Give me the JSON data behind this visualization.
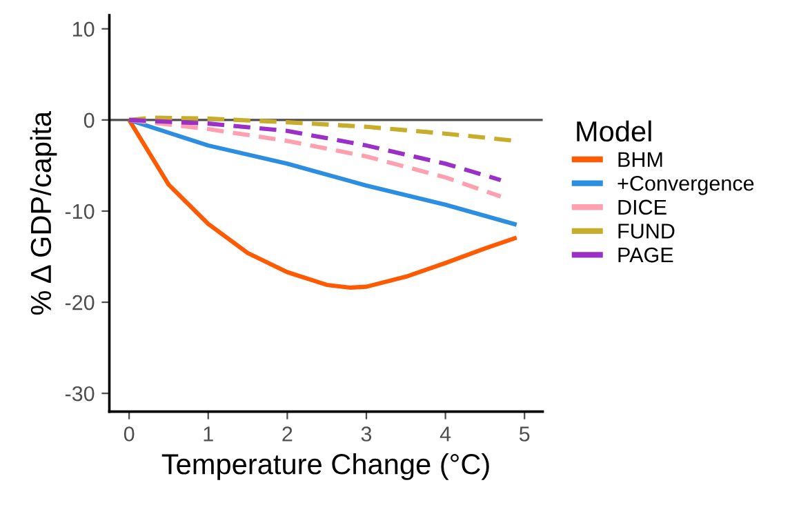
{
  "chart_data": {
    "type": "line",
    "xlabel": "Temperature Change (°C)",
    "ylabel": "% Δ GDP/capita",
    "legend_title": "Model",
    "legend": "right",
    "xlim": [
      -0.25,
      5.23
    ],
    "ylim": [
      -32,
      11.5
    ],
    "xticks": [
      0,
      1,
      2,
      3,
      4,
      5
    ],
    "yticks": [
      -30,
      -20,
      -10,
      0,
      10
    ],
    "grid": false,
    "ref_lines": [
      {
        "axis": "y",
        "value": 0,
        "color": "#4d4d4d"
      }
    ],
    "series": [
      {
        "name": "BHM",
        "color": "#ff5a00",
        "line_style": "solid",
        "x": [
          0,
          0.5,
          1,
          1.5,
          2,
          2.5,
          2.8,
          3,
          3.5,
          4,
          4.5,
          4.9
        ],
        "values": [
          0,
          -7.1,
          -11.4,
          -14.6,
          -16.7,
          -18.1,
          -18.4,
          -18.3,
          -17.2,
          -15.7,
          -14.1,
          -12.9
        ]
      },
      {
        "name": "+Convergence",
        "color": "#2b8ee0",
        "line_style": "solid",
        "x": [
          0,
          1,
          2,
          3,
          4,
          4.9
        ],
        "values": [
          0,
          -2.8,
          -4.8,
          -7.2,
          -9.3,
          -11.5
        ]
      },
      {
        "name": "DICE",
        "color": "#ffa0b0",
        "line_style": "dashed",
        "x": [
          0,
          1,
          2,
          3,
          4,
          4.7
        ],
        "values": [
          0,
          -1.0,
          -2.3,
          -4.0,
          -6.3,
          -8.4
        ]
      },
      {
        "name": "FUND",
        "color": "#c8ad2a",
        "line_style": "dashed",
        "x": [
          0,
          0.3,
          1,
          2,
          3,
          4,
          4.9
        ],
        "values": [
          0,
          0.25,
          0.15,
          -0.25,
          -0.75,
          -1.5,
          -2.3
        ]
      },
      {
        "name": "PAGE",
        "color": "#9b30c8",
        "line_style": "dashed",
        "x": [
          0,
          1,
          2,
          3,
          4,
          4.7
        ],
        "values": [
          0,
          -0.4,
          -1.2,
          -2.8,
          -4.8,
          -6.6
        ]
      }
    ]
  }
}
